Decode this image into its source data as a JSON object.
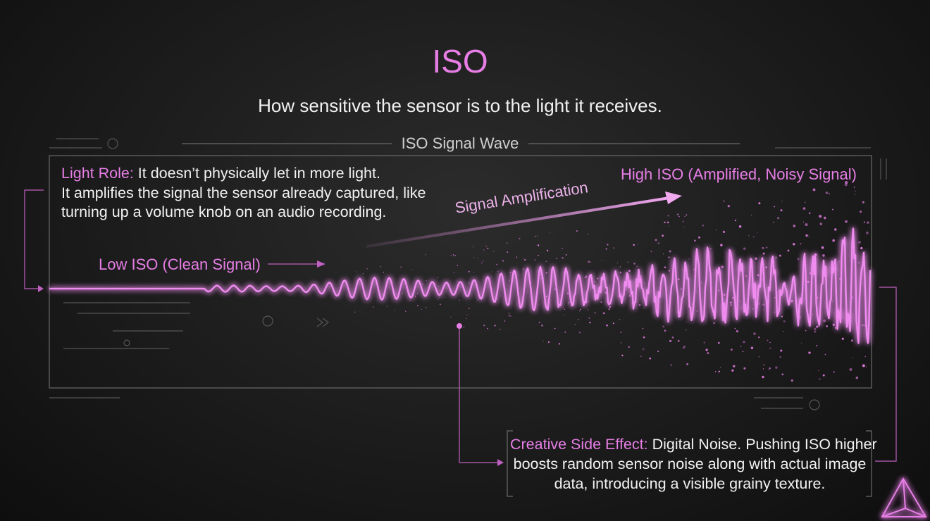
{
  "title": "ISO",
  "subtitle": "How sensitive the sensor is to the light it receives.",
  "panel_label": "ISO Signal Wave",
  "light_role": {
    "label": "Light Role:",
    "lines": [
      "It doesn’t physically let in more light.",
      "It amplifies the signal the sensor already captured, like",
      "turning up a volume knob on an audio recording."
    ]
  },
  "amplification_label": "Signal Amplification",
  "low_iso_label": "Low ISO (Clean Signal)",
  "high_iso_label": "High ISO (Amplified, Noisy Signal)",
  "side_effect": {
    "label": "Creative Side Effect:",
    "lines": [
      "Digital Noise. Pushing ISO higher",
      "boosts random sensor noise along with actual image",
      "data, introducing a visible grainy texture."
    ]
  }
}
